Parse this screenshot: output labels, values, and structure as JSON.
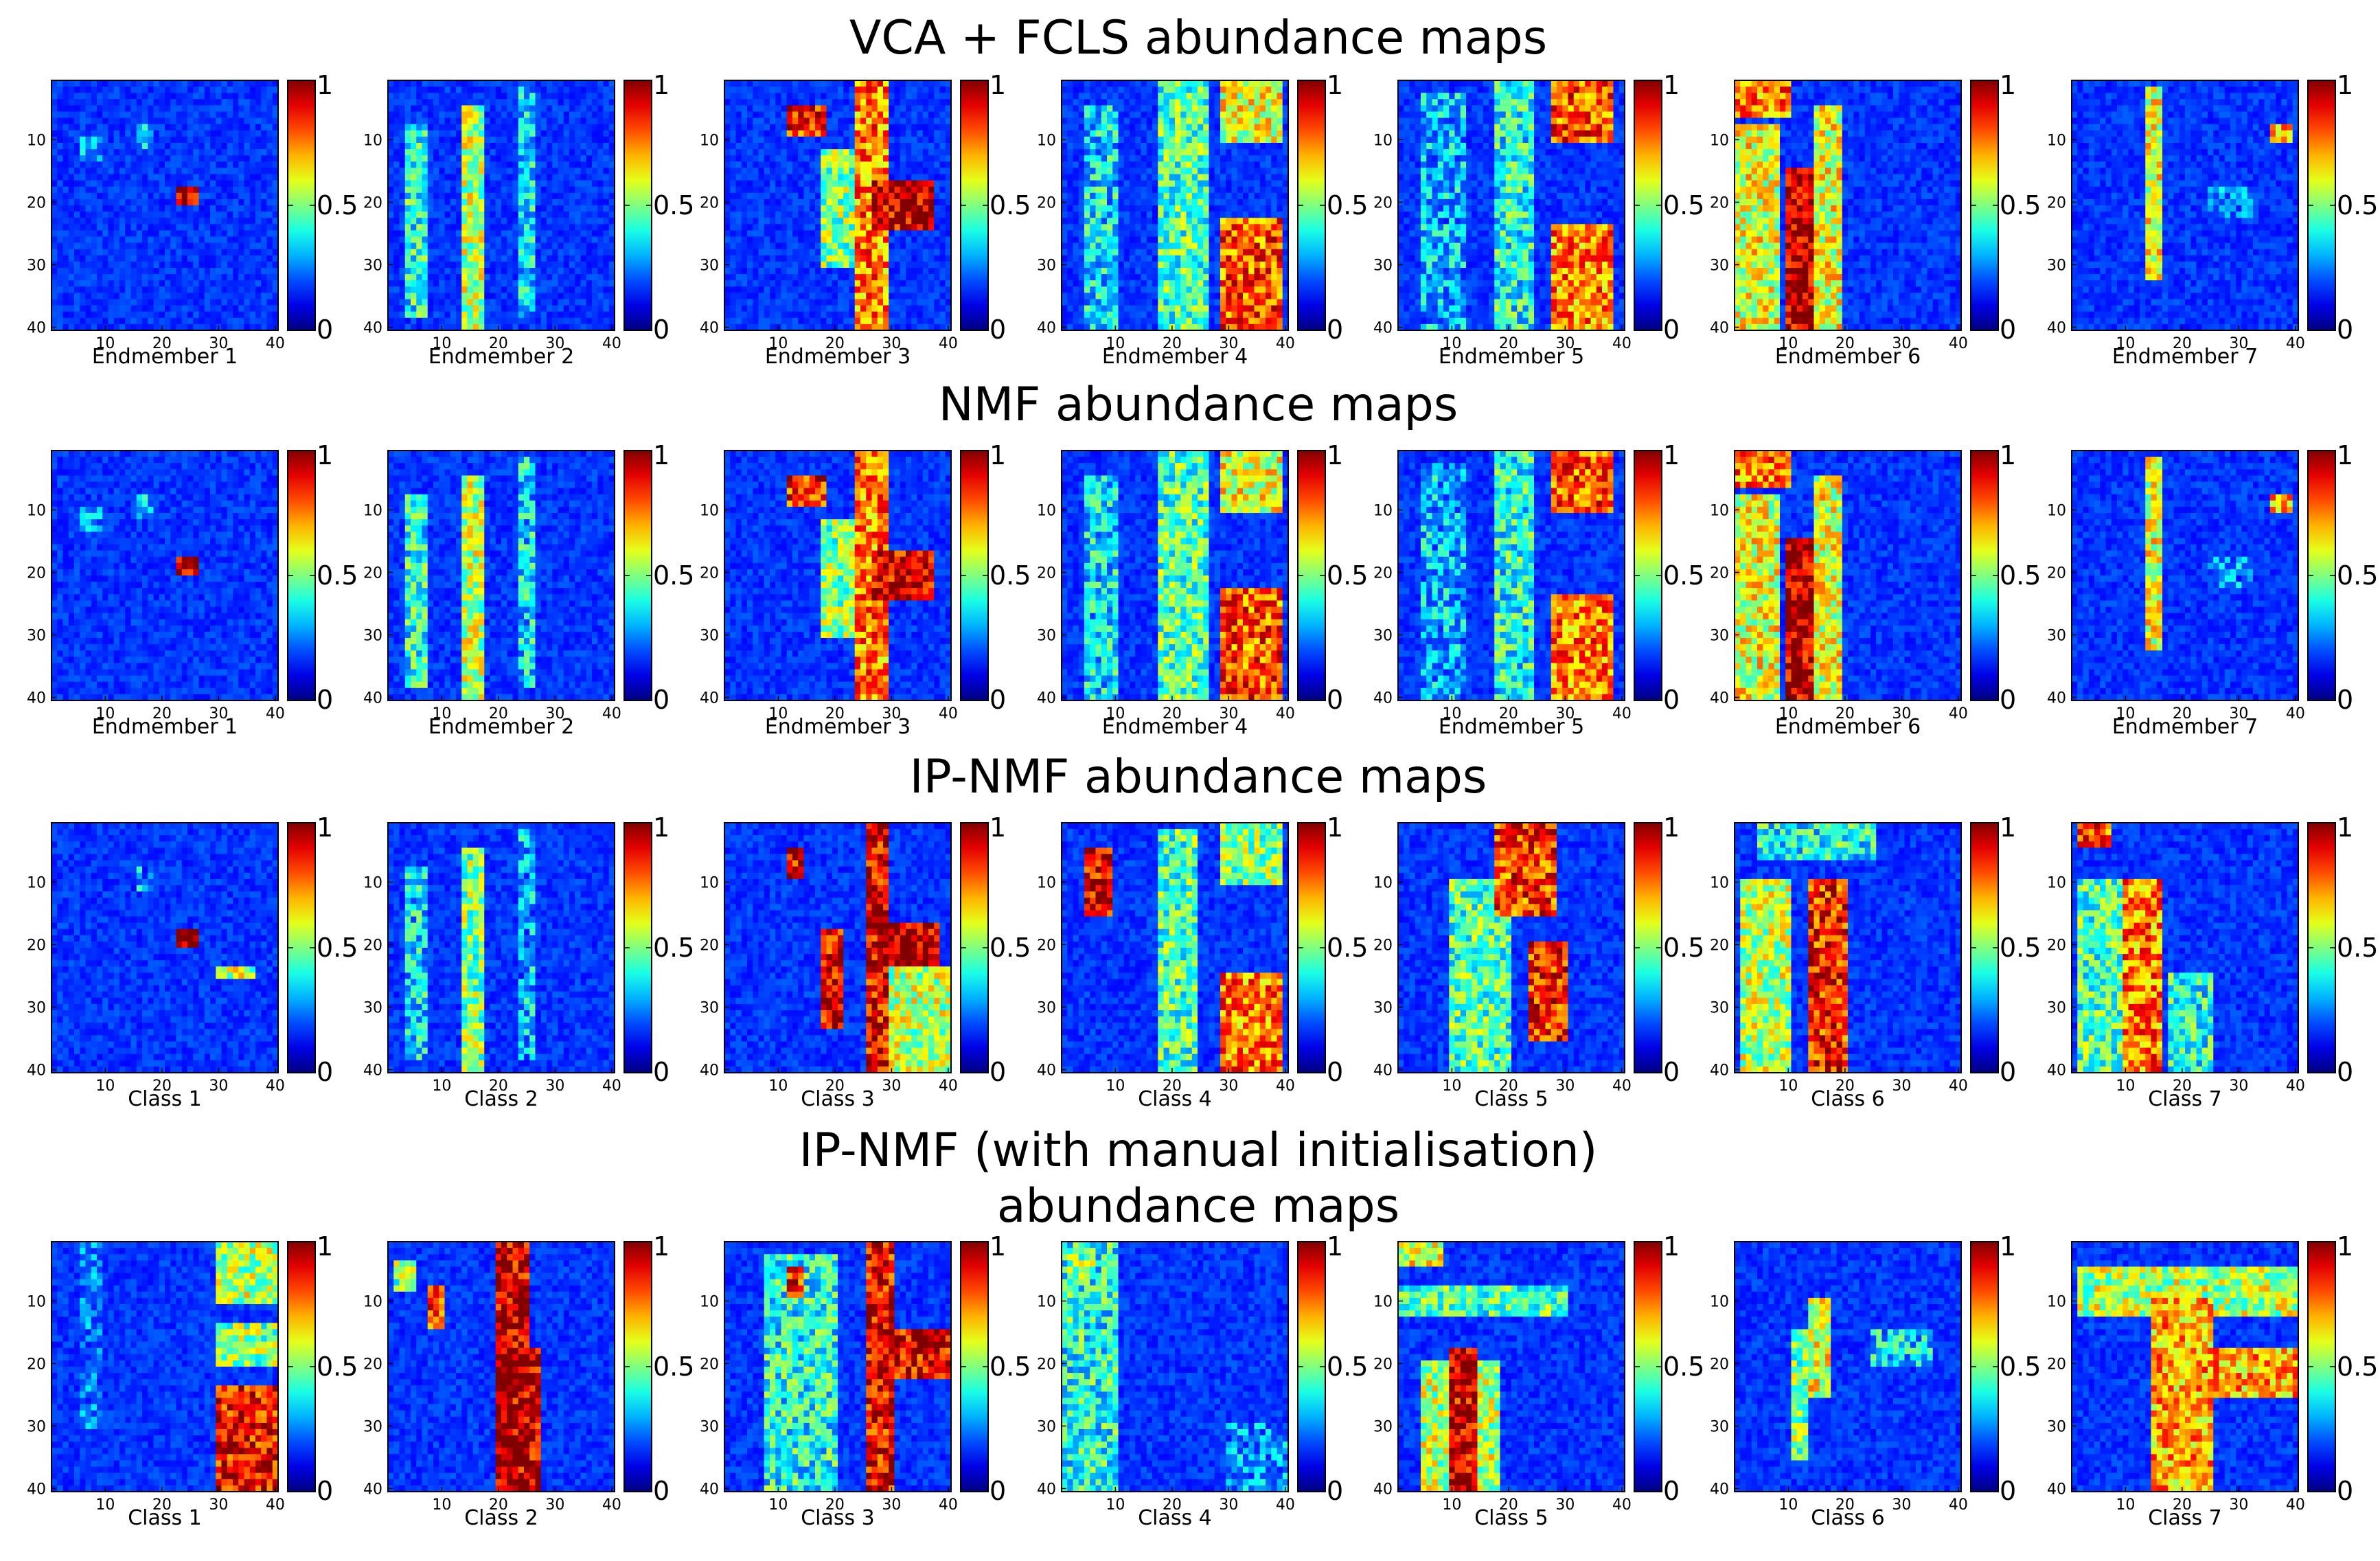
{
  "chart_data": {
    "type": "heatmap",
    "colormap": "jet",
    "grid_size": [
      40,
      40
    ],
    "colorbar": {
      "range": [
        0,
        1
      ],
      "ticks": [
        "0",
        "0.5",
        "1"
      ]
    },
    "axis_ticks": [
      "10",
      "20",
      "30",
      "40"
    ],
    "rows": [
      {
        "title_lines": [
          "VCA + FCLS abundance maps"
        ],
        "panels": [
          {
            "label": "Endmember 1",
            "blocks": [
              [
                23,
                26,
                18,
                20,
                0.95
              ],
              [
                16,
                18,
                8,
                11,
                0.3
              ],
              [
                6,
                9,
                10,
                13,
                0.25
              ]
            ]
          },
          {
            "label": "Endmember 2",
            "blocks": [
              [
                14,
                17,
                5,
                40,
                0.55
              ],
              [
                4,
                7,
                8,
                38,
                0.4
              ],
              [
                24,
                26,
                2,
                38,
                0.35
              ]
            ]
          },
          {
            "label": "Endmember 3",
            "blocks": [
              [
                27,
                37,
                17,
                24,
                0.92
              ],
              [
                24,
                29,
                1,
                40,
                0.75
              ],
              [
                12,
                18,
                5,
                9,
                0.85
              ],
              [
                18,
                24,
                12,
                30,
                0.5
              ]
            ]
          },
          {
            "label": "Endmember 4",
            "blocks": [
              [
                29,
                39,
                23,
                40,
                0.8
              ],
              [
                29,
                39,
                1,
                10,
                0.6
              ],
              [
                18,
                26,
                1,
                40,
                0.45
              ],
              [
                5,
                10,
                5,
                40,
                0.35
              ]
            ]
          },
          {
            "label": "Endmember 5",
            "blocks": [
              [
                28,
                38,
                1,
                10,
                0.8
              ],
              [
                28,
                38,
                24,
                40,
                0.75
              ],
              [
                18,
                24,
                1,
                40,
                0.4
              ],
              [
                5,
                12,
                3,
                40,
                0.3
              ]
            ]
          },
          {
            "label": "Endmember 6",
            "blocks": [
              [
                10,
                14,
                15,
                40,
                0.95
              ],
              [
                1,
                8,
                8,
                40,
                0.6
              ],
              [
                15,
                19,
                5,
                40,
                0.6
              ],
              [
                1,
                10,
                1,
                6,
                0.75
              ]
            ]
          },
          {
            "label": "Endmember 7",
            "blocks": [
              [
                14,
                16,
                2,
                32,
                0.6
              ],
              [
                36,
                39,
                8,
                10,
                0.7
              ],
              [
                25,
                32,
                18,
                22,
                0.25
              ]
            ]
          }
        ]
      },
      {
        "title_lines": [
          "NMF abundance maps"
        ],
        "panels": [
          {
            "label": "Endmember 1",
            "blocks": [
              [
                23,
                26,
                18,
                20,
                0.95
              ],
              [
                16,
                18,
                8,
                11,
                0.3
              ],
              [
                6,
                9,
                10,
                13,
                0.25
              ]
            ]
          },
          {
            "label": "Endmember 2",
            "blocks": [
              [
                14,
                17,
                5,
                40,
                0.55
              ],
              [
                4,
                7,
                8,
                38,
                0.4
              ],
              [
                24,
                26,
                2,
                38,
                0.35
              ]
            ]
          },
          {
            "label": "Endmember 3",
            "blocks": [
              [
                27,
                37,
                17,
                24,
                0.92
              ],
              [
                24,
                29,
                1,
                40,
                0.75
              ],
              [
                12,
                18,
                5,
                9,
                0.85
              ],
              [
                18,
                24,
                12,
                30,
                0.5
              ]
            ]
          },
          {
            "label": "Endmember 4",
            "blocks": [
              [
                29,
                39,
                23,
                40,
                0.8
              ],
              [
                29,
                39,
                1,
                10,
                0.6
              ],
              [
                18,
                26,
                1,
                40,
                0.45
              ],
              [
                5,
                10,
                5,
                40,
                0.35
              ]
            ]
          },
          {
            "label": "Endmember 5",
            "blocks": [
              [
                28,
                38,
                1,
                10,
                0.8
              ],
              [
                28,
                38,
                24,
                40,
                0.75
              ],
              [
                18,
                24,
                1,
                40,
                0.4
              ],
              [
                5,
                12,
                3,
                40,
                0.3
              ]
            ]
          },
          {
            "label": "Endmember 6",
            "blocks": [
              [
                10,
                14,
                15,
                40,
                0.95
              ],
              [
                1,
                8,
                8,
                40,
                0.6
              ],
              [
                15,
                19,
                5,
                40,
                0.6
              ],
              [
                1,
                10,
                1,
                6,
                0.75
              ]
            ]
          },
          {
            "label": "Endmember 7",
            "blocks": [
              [
                14,
                16,
                2,
                32,
                0.6
              ],
              [
                36,
                39,
                8,
                10,
                0.7
              ],
              [
                25,
                32,
                18,
                22,
                0.25
              ]
            ]
          }
        ]
      },
      {
        "title_lines": [
          "IP-NMF abundance maps"
        ],
        "panels": [
          {
            "label": "Class 1",
            "blocks": [
              [
                23,
                26,
                18,
                20,
                0.95
              ],
              [
                16,
                18,
                8,
                11,
                0.3
              ],
              [
                30,
                36,
                24,
                25,
                0.55
              ]
            ]
          },
          {
            "label": "Class 2",
            "blocks": [
              [
                14,
                17,
                5,
                40,
                0.5
              ],
              [
                4,
                7,
                8,
                38,
                0.35
              ],
              [
                24,
                26,
                2,
                38,
                0.3
              ]
            ]
          },
          {
            "label": "Class 3",
            "blocks": [
              [
                28,
                38,
                17,
                23,
                0.95
              ],
              [
                26,
                29,
                1,
                40,
                0.9
              ],
              [
                18,
                21,
                18,
                33,
                0.9
              ],
              [
                12,
                14,
                5,
                9,
                0.9
              ],
              [
                30,
                40,
                24,
                40,
                0.55
              ]
            ]
          },
          {
            "label": "Class 4",
            "blocks": [
              [
                29,
                39,
                25,
                40,
                0.75
              ],
              [
                5,
                9,
                5,
                15,
                0.9
              ],
              [
                18,
                24,
                2,
                40,
                0.45
              ],
              [
                29,
                39,
                1,
                10,
                0.5
              ]
            ]
          },
          {
            "label": "Class 5",
            "blocks": [
              [
                18,
                28,
                1,
                15,
                0.82
              ],
              [
                24,
                30,
                20,
                35,
                0.85
              ],
              [
                10,
                20,
                10,
                40,
                0.45
              ]
            ]
          },
          {
            "label": "Class 6",
            "blocks": [
              [
                14,
                20,
                10,
                40,
                0.85
              ],
              [
                2,
                10,
                10,
                40,
                0.55
              ],
              [
                5,
                25,
                1,
                6,
                0.4
              ]
            ]
          },
          {
            "label": "Class 7",
            "blocks": [
              [
                2,
                7,
                1,
                4,
                0.8
              ],
              [
                10,
                16,
                10,
                40,
                0.75
              ],
              [
                2,
                10,
                10,
                40,
                0.45
              ],
              [
                18,
                25,
                25,
                40,
                0.4
              ]
            ]
          }
        ]
      },
      {
        "title_lines": [
          "IP-NMF (with manual initialisation)",
          "abundance maps"
        ],
        "panels": [
          {
            "label": "Class 1",
            "blocks": [
              [
                30,
                40,
                24,
                40,
                0.88
              ],
              [
                30,
                40,
                1,
                10,
                0.55
              ],
              [
                30,
                40,
                14,
                20,
                0.5
              ],
              [
                6,
                9,
                1,
                30,
                0.2
              ]
            ]
          },
          {
            "label": "Class 2",
            "blocks": [
              [
                20,
                25,
                1,
                40,
                0.92
              ],
              [
                20,
                27,
                18,
                40,
                0.92
              ],
              [
                8,
                10,
                8,
                14,
                0.8
              ],
              [
                2,
                5,
                4,
                8,
                0.5
              ]
            ]
          },
          {
            "label": "Class 3",
            "blocks": [
              [
                26,
                30,
                1,
                40,
                0.88
              ],
              [
                28,
                40,
                15,
                22,
                0.9
              ],
              [
                12,
                14,
                5,
                9,
                0.85
              ],
              [
                8,
                20,
                3,
                40,
                0.4
              ]
            ]
          },
          {
            "label": "Class 4",
            "blocks": [
              [
                1,
                10,
                1,
                40,
                0.4
              ],
              [
                2,
                6,
                2,
                6,
                0.5
              ],
              [
                30,
                40,
                30,
                40,
                0.25
              ]
            ]
          },
          {
            "label": "Class 5",
            "blocks": [
              [
                10,
                14,
                18,
                40,
                0.92
              ],
              [
                1,
                8,
                1,
                4,
                0.6
              ],
              [
                5,
                18,
                20,
                40,
                0.55
              ],
              [
                1,
                30,
                8,
                12,
                0.45
              ]
            ]
          },
          {
            "label": "Class 6",
            "blocks": [
              [
                14,
                17,
                10,
                25,
                0.6
              ],
              [
                11,
                13,
                15,
                35,
                0.5
              ],
              [
                25,
                35,
                15,
                20,
                0.35
              ]
            ]
          },
          {
            "label": "Class 7",
            "blocks": [
              [
                15,
                25,
                10,
                40,
                0.7
              ],
              [
                2,
                40,
                5,
                12,
                0.55
              ],
              [
                25,
                40,
                18,
                25,
                0.7
              ],
              [
                18,
                22,
                25,
                35,
                0.55
              ]
            ]
          }
        ]
      }
    ]
  }
}
